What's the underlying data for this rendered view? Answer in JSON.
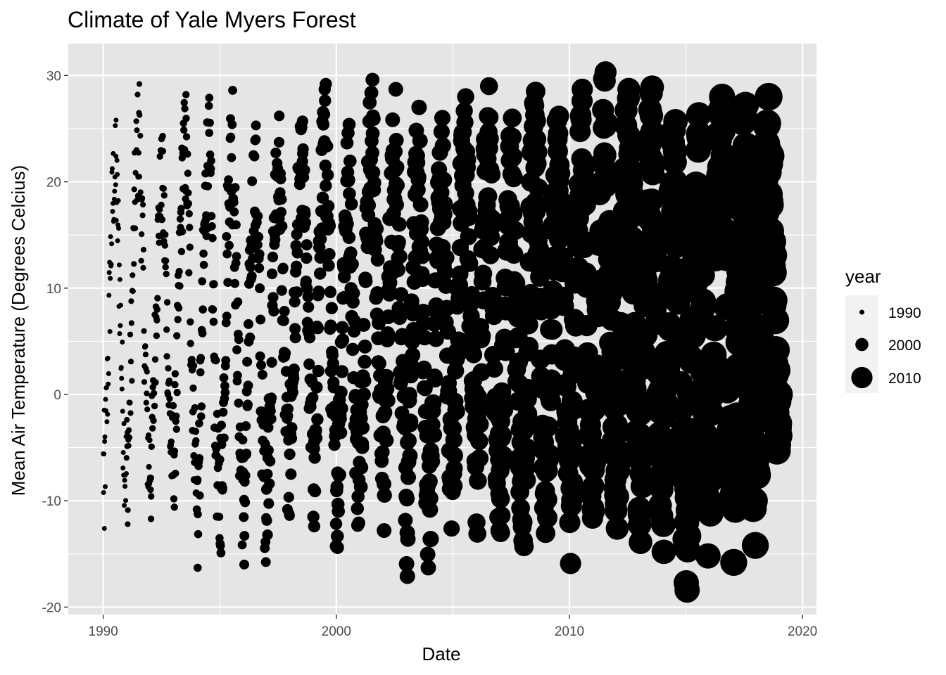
{
  "chart_data": {
    "type": "scatter",
    "title": "Climate of Yale Myers Forest",
    "xlabel": "Date",
    "ylabel": "Mean Air Temperature (Degrees Celcius)",
    "xlim": [
      1988.5,
      2020.6
    ],
    "ylim": [
      -20.7,
      33
    ],
    "x_ticks": [
      1990,
      2000,
      2010,
      2020
    ],
    "x_tick_labels": [
      "1990",
      "2000",
      "2010",
      "2020"
    ],
    "y_ticks": [
      -20,
      -10,
      0,
      10,
      20,
      30
    ],
    "y_tick_labels": [
      "-20",
      "-10",
      "0",
      "10",
      "20",
      "30"
    ],
    "grid": true,
    "panel_background": "#e5e5e5",
    "point_color": "#000000",
    "size_mapping": "year",
    "legend": {
      "title": "year",
      "position": "right",
      "entries": [
        {
          "label": "1990",
          "year": 1990
        },
        {
          "label": "2000",
          "year": 2000
        },
        {
          "label": "2010",
          "year": 2010
        }
      ]
    },
    "series": [
      {
        "year": 1990,
        "x_range": [
          1990.0,
          1990.99
        ],
        "y_min": -12.6,
        "y_max": 25.8
      },
      {
        "year": 1991,
        "x_range": [
          1991.0,
          1991.99
        ],
        "y_min": -12.2,
        "y_max": 29.2
      },
      {
        "year": 1992,
        "x_range": [
          1992.0,
          1992.99
        ],
        "y_min": -11.7,
        "y_max": 24.3
      },
      {
        "year": 1993,
        "x_range": [
          1993.0,
          1993.99
        ],
        "y_min": -10.6,
        "y_max": 28.2
      },
      {
        "year": 1994,
        "x_range": [
          1994.0,
          1994.99
        ],
        "y_min": -16.3,
        "y_max": 27.9
      },
      {
        "year": 1995,
        "x_range": [
          1995.0,
          1995.99
        ],
        "y_min": -14.9,
        "y_max": 28.6
      },
      {
        "year": 1996,
        "x_range": [
          1996.0,
          1996.99
        ],
        "y_min": -16.0,
        "y_max": 25.3
      },
      {
        "year": 1997,
        "x_range": [
          1997.0,
          1997.99
        ],
        "y_min": -13.2,
        "y_max": 26.2
      },
      {
        "year": 1998,
        "x_range": [
          1998.0,
          1998.99
        ],
        "y_min": -7.5,
        "y_max": 25.7
      },
      {
        "year": 1999,
        "x_range": [
          1999.0,
          1999.99
        ],
        "y_min": -12.4,
        "y_max": 29.2
      },
      {
        "year": 2000,
        "x_range": [
          2000.0,
          2000.99
        ],
        "y_min": -14.4,
        "y_max": 25.4
      },
      {
        "year": 2001,
        "x_range": [
          2001.0,
          2001.99
        ],
        "y_min": -8.7,
        "y_max": 29.6
      },
      {
        "year": 2002,
        "x_range": [
          2002.0,
          2002.99
        ],
        "y_min": -12.8,
        "y_max": 28.7
      },
      {
        "year": 2003,
        "x_range": [
          2003.0,
          2003.99
        ],
        "y_min": -17.1,
        "y_max": 27.0
      },
      {
        "year": 2004,
        "x_range": [
          2004.0,
          2004.99
        ],
        "y_min": -13.6,
        "y_max": 26.0
      },
      {
        "year": 2005,
        "x_range": [
          2005.0,
          2005.99
        ],
        "y_min": -8.6,
        "y_max": 28.0
      },
      {
        "year": 2006,
        "x_range": [
          2006.0,
          2006.99
        ],
        "y_min": -13.1,
        "y_max": 29.0
      },
      {
        "year": 2007,
        "x_range": [
          2007.0,
          2007.99
        ],
        "y_min": -13.0,
        "y_max": 26.0
      },
      {
        "year": 2008,
        "x_range": [
          2008.0,
          2008.99
        ],
        "y_min": -14.3,
        "y_max": 28.5
      },
      {
        "year": 2009,
        "x_range": [
          2009.0,
          2009.99
        ],
        "y_min": -11.6,
        "y_max": 26.2
      },
      {
        "year": 2010,
        "x_range": [
          2010.0,
          2010.99
        ],
        "y_min": -15.9,
        "y_max": 28.7
      },
      {
        "year": 2011,
        "x_range": [
          2011.0,
          2011.99
        ],
        "y_min": -11.0,
        "y_max": 30.3
      },
      {
        "year": 2012,
        "x_range": [
          2012.0,
          2012.99
        ],
        "y_min": -12.6,
        "y_max": 28.7
      },
      {
        "year": 2013,
        "x_range": [
          2013.0,
          2013.99
        ],
        "y_min": -13.9,
        "y_max": 28.9
      },
      {
        "year": 2014,
        "x_range": [
          2014.0,
          2014.99
        ],
        "y_min": -14.8,
        "y_max": 25.7
      },
      {
        "year": 2015,
        "x_range": [
          2015.0,
          2015.99
        ],
        "y_min": -18.4,
        "y_max": 26.3
      },
      {
        "year": 2016,
        "x_range": [
          2016.0,
          2016.99
        ],
        "y_min": -11.2,
        "y_max": 28.0
      },
      {
        "year": 2017,
        "x_range": [
          2017.0,
          2017.99
        ],
        "y_min": -15.8,
        "y_max": 27.2
      },
      {
        "year": 2018,
        "x_range": [
          2018.0,
          2018.99
        ],
        "y_min": -7.6,
        "y_max": 28.0
      }
    ]
  }
}
